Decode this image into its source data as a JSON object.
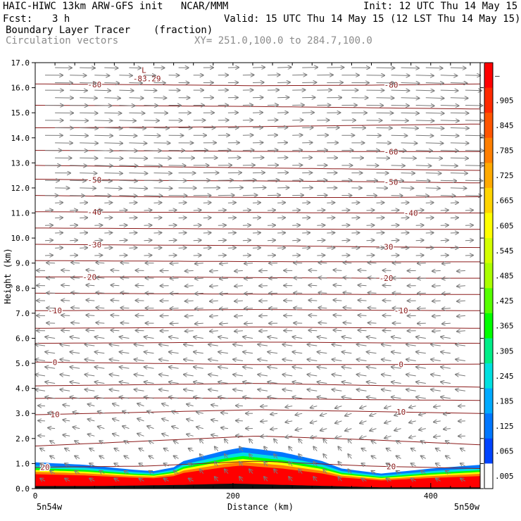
{
  "header": {
    "model_line": "HAIC-HIWC 13km ARW-GFS init   NCAR/MMM",
    "init_line": "Init: 12 UTC Thu 14 May 15",
    "fcst_label": "Fcst:",
    "fcst_value": "3 h",
    "valid_line": "Valid: 15 UTC Thu 14 May 15 (12 LST Thu 14 May 15)",
    "field_name": "Boundary Layer Tracer",
    "field_units": "(fraction)",
    "vector_label": "Circulation vectors",
    "xy_label": "XY= 251.0,100.0 to 284.7,100.0"
  },
  "chart_data": {
    "type": "heatmap",
    "title": "Boundary Layer Tracer",
    "units": "fraction",
    "xlabel": "Distance (km)",
    "ylabel": "Height (km)",
    "xlim": [
      0,
      450
    ],
    "ylim": [
      0,
      17
    ],
    "x_ticks": [
      "0",
      "200",
      "400"
    ],
    "x_tick_values": [
      0,
      200,
      400
    ],
    "x_minor_step": 20,
    "y_ticks": [
      "0.0",
      "1.0",
      "2.0",
      "3.0",
      "4.0",
      "5.0",
      "6.0",
      "7.0",
      "8.0",
      "9.0",
      "10.0",
      "11.0",
      "12.0",
      "13.0",
      "14.0",
      "15.0",
      "16.0",
      "17.0"
    ],
    "x_end_labels": [
      "5n54w",
      "5n50w"
    ],
    "colorbar": {
      "labels": [
        "–",
        ".905",
        ".845",
        ".785",
        ".725",
        ".665",
        ".605",
        ".545",
        ".485",
        ".425",
        ".365",
        ".305",
        ".245",
        ".185",
        ".125",
        ".065",
        ".005"
      ],
      "colors": [
        "#ff0000",
        "#ff2a00",
        "#ff5500",
        "#ff7f00",
        "#ffaa00",
        "#ffd400",
        "#ffff00",
        "#d4ff00",
        "#aaff00",
        "#55ff00",
        "#00ff00",
        "#00ee88",
        "#00e0e0",
        "#00aaff",
        "#0077ff",
        "#0044ff",
        "#ffffff"
      ]
    },
    "terrain_km": [
      [
        0,
        0.1
      ],
      [
        50,
        0.1
      ],
      [
        100,
        0.12
      ],
      [
        150,
        0.15
      ],
      [
        200,
        0.2
      ],
      [
        250,
        0.15
      ],
      [
        300,
        0.1
      ],
      [
        350,
        0.05
      ],
      [
        400,
        0.05
      ],
      [
        450,
        0.05
      ]
    ],
    "tracer_top_km": [
      [
        0,
        1.05
      ],
      [
        50,
        0.95
      ],
      [
        100,
        0.75
      ],
      [
        120,
        0.7
      ],
      [
        140,
        0.85
      ],
      [
        150,
        1.1
      ],
      [
        160,
        1.2
      ],
      [
        190,
        1.5
      ],
      [
        210,
        1.65
      ],
      [
        250,
        1.45
      ],
      [
        290,
        1.1
      ],
      [
        310,
        0.8
      ],
      [
        350,
        0.6
      ],
      [
        400,
        0.8
      ],
      [
        450,
        0.95
      ]
    ],
    "tracer_layers": [
      {
        "color": "#0077ff",
        "top_fraction": 1.0
      },
      {
        "color": "#00e0e0",
        "top_fraction": 0.86
      },
      {
        "color": "#00ff00",
        "top_fraction": 0.76
      },
      {
        "color": "#ffff00",
        "top_fraction": 0.68
      },
      {
        "color": "#ff7f00",
        "top_fraction": 0.6
      },
      {
        "color": "#ff0000",
        "top_fraction": 0.5
      }
    ],
    "contours": [
      {
        "label": "-80",
        "y": [
          16.15,
          16.12,
          16.08,
          16.1,
          16.15
        ],
        "labels_at": [
          60,
          360
        ]
      },
      {
        "label": "",
        "y": [
          15.3,
          15.28,
          15.25,
          15.2,
          15.15
        ],
        "labels_at": []
      },
      {
        "label": "",
        "y": [
          14.4,
          14.42,
          14.45,
          14.5,
          14.55
        ],
        "labels_at": []
      },
      {
        "label": "-60",
        "y": [
          13.5,
          13.48,
          13.46,
          13.45,
          13.45
        ],
        "labels_at": [
          360
        ]
      },
      {
        "label": "",
        "y": [
          12.9,
          12.85,
          12.8,
          12.75,
          12.7
        ],
        "labels_at": []
      },
      {
        "label": "-50",
        "y": [
          12.35,
          12.3,
          12.28,
          12.25,
          12.2
        ],
        "labels_at": [
          60,
          360
        ]
      },
      {
        "label": "",
        "y": [
          11.7,
          11.65,
          11.62,
          11.62,
          11.65
        ],
        "labels_at": []
      },
      {
        "label": "-40",
        "y": [
          11.05,
          11.03,
          11.02,
          11.0,
          11.0
        ],
        "labels_at": [
          60,
          380
        ]
      },
      {
        "label": "",
        "y": [
          10.4,
          10.38,
          10.36,
          10.35,
          10.35
        ],
        "labels_at": []
      },
      {
        "label": "-30",
        "y": [
          9.75,
          9.72,
          9.7,
          9.65,
          9.62
        ],
        "labels_at": [
          60,
          355
        ]
      },
      {
        "label": "",
        "y": [
          9.1,
          9.08,
          9.06,
          9.05,
          9.05
        ],
        "labels_at": []
      },
      {
        "label": "-20",
        "y": [
          8.45,
          8.45,
          8.42,
          8.4,
          8.4
        ],
        "labels_at": [
          55,
          355
        ]
      },
      {
        "label": "",
        "y": [
          7.8,
          7.78,
          7.76,
          7.75,
          7.75
        ],
        "labels_at": []
      },
      {
        "label": "-10",
        "y": [
          7.1,
          7.12,
          7.15,
          7.12,
          7.1
        ],
        "labels_at": [
          20,
          370
        ]
      },
      {
        "label": "",
        "y": [
          6.4,
          6.42,
          6.45,
          6.42,
          6.4
        ],
        "labels_at": []
      },
      {
        "label": "",
        "y": [
          5.8,
          5.82,
          5.85,
          5.82,
          5.8
        ],
        "labels_at": []
      },
      {
        "label": "0",
        "y": [
          5.05,
          5.0,
          4.95,
          4.95,
          4.97
        ],
        "labels_at": [
          20,
          370
        ]
      },
      {
        "label": "",
        "y": [
          4.1,
          4.15,
          4.2,
          4.12,
          4.05
        ],
        "labels_at": []
      },
      {
        "label": "",
        "y": [
          3.6,
          3.62,
          3.6,
          3.55,
          3.52
        ],
        "labels_at": []
      },
      {
        "label": "10",
        "y": [
          2.95,
          3.05,
          3.15,
          3.08,
          3.0
        ],
        "labels_at": [
          20,
          370
        ]
      },
      {
        "label": "",
        "y": [
          1.7,
          1.9,
          2.1,
          1.95,
          1.75
        ],
        "labels_at": []
      },
      {
        "label": "20",
        "y": [
          0.85,
          0.9,
          1.1,
          0.9,
          0.8
        ],
        "labels_at": [
          10,
          360
        ]
      }
    ],
    "extremum_label": "L",
    "extremum_value": "-83.29",
    "extremum_at": [
      110,
      16.7
    ],
    "vectors": {
      "x_step_km": 25,
      "levels_km": [
        0.3,
        0.6,
        0.9,
        1.2,
        1.5,
        1.8,
        2.1,
        2.4,
        2.7,
        3.0,
        3.3,
        3.6,
        3.9,
        4.2,
        4.5,
        4.8,
        5.1,
        5.4,
        5.7,
        6.0,
        6.3,
        6.6,
        6.9,
        7.2,
        7.5,
        7.8,
        8.1,
        8.4,
        8.7,
        9.0,
        9.3,
        9.6,
        9.9,
        10.2,
        10.5,
        10.8,
        11.1,
        11.4,
        11.7,
        12.0,
        12.3,
        12.6,
        12.9,
        13.2,
        13.5,
        13.8,
        14.1,
        14.4,
        14.7,
        15.0,
        15.3,
        15.6,
        15.9,
        16.2,
        16.5,
        16.8
      ],
      "color": "#7a7a7a"
    }
  }
}
